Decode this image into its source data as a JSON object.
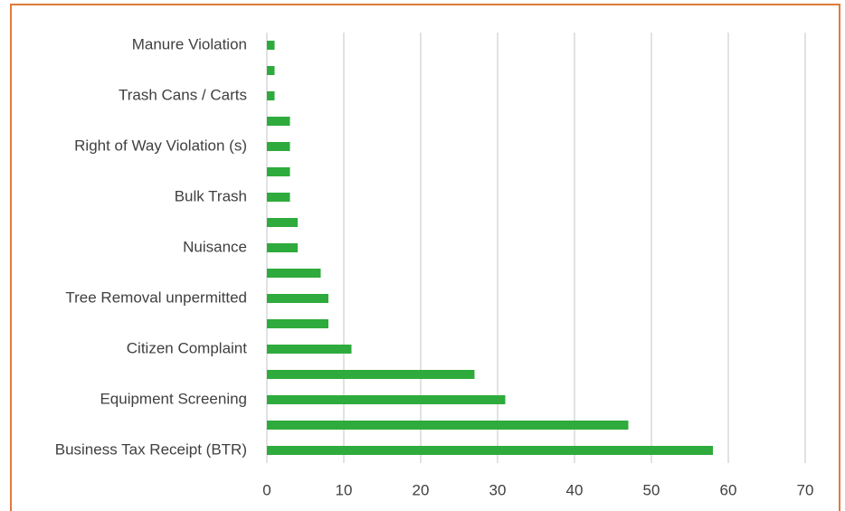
{
  "chart_data": {
    "type": "bar",
    "orientation": "horizontal",
    "categories": [
      "Manure Violation",
      null,
      "Trash Cans / Carts",
      null,
      "Right of Way Violation (s)",
      null,
      "Bulk Trash",
      null,
      "Nuisance",
      null,
      "Tree Removal unpermitted",
      null,
      "Citizen Complaint",
      null,
      "Equipment Screening",
      null,
      "Business Tax Receipt (BTR)"
    ],
    "values": [
      1,
      1,
      1,
      3,
      3,
      3,
      3,
      4,
      4,
      7,
      8,
      8,
      11,
      27,
      31,
      47,
      58
    ],
    "color": "#2eab3c",
    "xlim": [
      0,
      70
    ],
    "xticks": [
      0,
      10,
      20,
      30,
      40,
      50,
      60,
      70
    ],
    "grid": true
  }
}
